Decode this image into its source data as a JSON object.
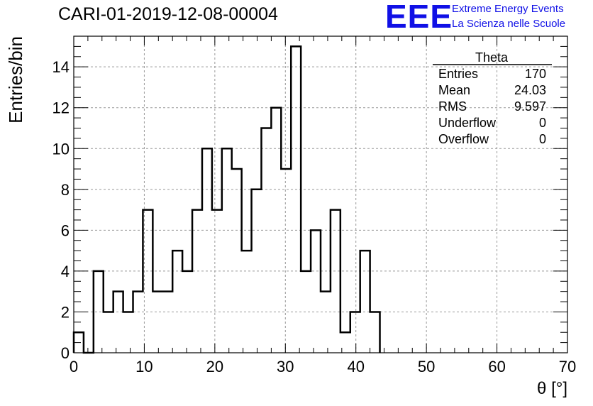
{
  "title": "CARI-01-2019-12-08-00004",
  "logo": {
    "mark": "EEE",
    "line1": "Extreme Energy Events",
    "line2": "La Scienza nelle Scuole",
    "color": "#1010e6"
  },
  "stats": {
    "name": "Theta",
    "rows": [
      {
        "label": "Entries",
        "value": "170"
      },
      {
        "label": "Mean",
        "value": "24.03"
      },
      {
        "label": "RMS",
        "value": "9.597"
      },
      {
        "label": "Underflow",
        "value": "0"
      },
      {
        "label": "Overflow",
        "value": "0"
      }
    ]
  },
  "chart_data": {
    "type": "bar",
    "style": "step-histogram",
    "xlabel": "θ [°]",
    "ylabel": "Entries/bin",
    "xlim": [
      0,
      70
    ],
    "ylim": [
      0,
      15.5
    ],
    "grid": true,
    "bin_width": 1.4,
    "x_ticks": [
      0,
      10,
      20,
      30,
      40,
      50,
      60,
      70
    ],
    "y_ticks": [
      0,
      2,
      4,
      6,
      8,
      10,
      12,
      14
    ],
    "x_tick_labels": [
      "0",
      "10",
      "20",
      "30",
      "40",
      "50",
      "60",
      "70"
    ],
    "y_tick_labels": [
      "0",
      "2",
      "4",
      "6",
      "8",
      "10",
      "12",
      "14"
    ],
    "values": [
      1,
      0,
      4,
      2,
      3,
      2,
      3,
      7,
      3,
      3,
      5,
      4,
      7,
      10,
      7,
      10,
      9,
      5,
      8,
      11,
      12,
      9,
      15,
      4,
      6,
      3,
      7,
      1,
      2,
      5,
      2
    ]
  }
}
